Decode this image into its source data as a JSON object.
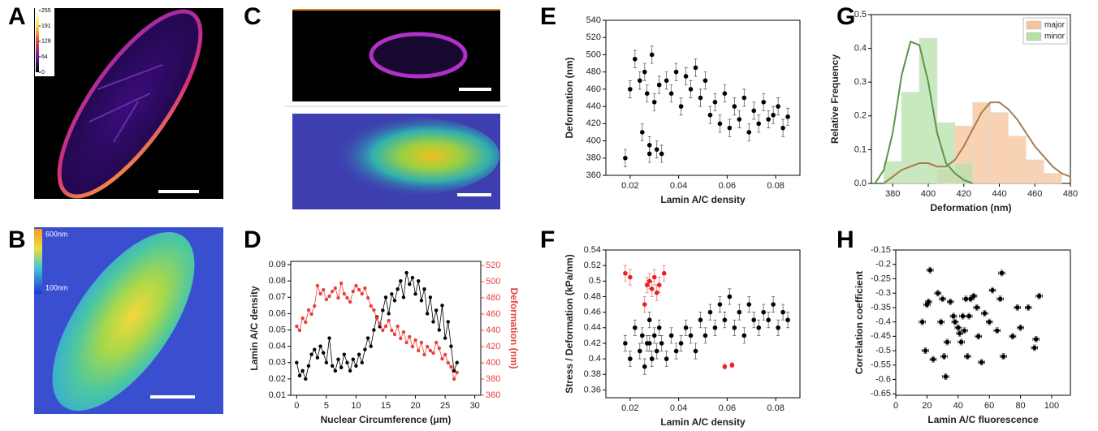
{
  "panel_letters": [
    "A",
    "B",
    "C",
    "D",
    "E",
    "F",
    "G",
    "H"
  ],
  "images": {
    "a_colorbar": {
      "lim": [
        0,
        255
      ],
      "ticks": [
        0,
        64,
        128,
        191,
        255
      ]
    },
    "b_scale": [
      "600nm",
      "100nm"
    ]
  },
  "chart_data": [
    {
      "type": "line",
      "xlabel": "Nuclear Circumference (μm)",
      "ylabel": "Lamin A/C density",
      "y2label": "Deformation (nm)",
      "xlim": [
        -1,
        31
      ],
      "xticks": [
        0,
        5,
        10,
        15,
        20,
        25,
        30
      ],
      "ylim": [
        0.01,
        0.092
      ],
      "yticks": [
        0.01,
        0.02,
        0.03,
        0.04,
        0.05,
        0.06,
        0.07,
        0.08,
        0.09
      ],
      "y2lim": [
        360,
        525
      ],
      "y2ticks": [
        360,
        380,
        400,
        420,
        440,
        460,
        480,
        500,
        520
      ],
      "x": [
        0,
        0.5,
        1,
        1.5,
        2,
        2.5,
        3,
        3.5,
        4,
        4.5,
        5,
        5.5,
        6,
        6.5,
        7,
        7.5,
        8,
        8.5,
        9,
        9.5,
        10,
        10.5,
        11,
        11.5,
        12,
        12.5,
        13,
        13.5,
        14,
        14.5,
        15,
        15.5,
        16,
        16.5,
        17,
        17.5,
        18,
        18.5,
        19,
        19.5,
        20,
        20.5,
        21,
        21.5,
        22,
        22.5,
        23,
        23.5,
        24,
        24.5,
        25,
        25.5,
        26,
        26.5,
        27
      ],
      "series": [
        {
          "color": "#000000",
          "values": [
            0.03,
            0.022,
            0.025,
            0.02,
            0.028,
            0.035,
            0.038,
            0.033,
            0.04,
            0.036,
            0.03,
            0.045,
            0.028,
            0.025,
            0.032,
            0.027,
            0.035,
            0.03,
            0.025,
            0.032,
            0.028,
            0.035,
            0.03,
            0.038,
            0.045,
            0.04,
            0.05,
            0.058,
            0.052,
            0.062,
            0.07,
            0.06,
            0.072,
            0.068,
            0.075,
            0.08,
            0.07,
            0.085,
            0.078,
            0.082,
            0.072,
            0.08,
            0.068,
            0.075,
            0.06,
            0.07,
            0.055,
            0.062,
            0.05,
            0.065,
            0.045,
            0.055,
            0.04,
            0.025,
            0.03
          ]
        },
        {
          "color": "#e8413c",
          "axis": "y2",
          "values": [
            445,
            440,
            455,
            450,
            465,
            460,
            470,
            495,
            485,
            490,
            478,
            482,
            488,
            492,
            480,
            498,
            485,
            480,
            475,
            488,
            495,
            490,
            485,
            492,
            480,
            470,
            465,
            455,
            448,
            440,
            445,
            452,
            440,
            435,
            445,
            430,
            438,
            425,
            432,
            420,
            428,
            415,
            425,
            410,
            420,
            415,
            412,
            425,
            418,
            405,
            410,
            400,
            395,
            380,
            388
          ]
        }
      ]
    },
    {
      "type": "scatter",
      "xlabel": "Lamin A/C density",
      "ylabel": "Deformation (nm)",
      "xlim": [
        0.01,
        0.09
      ],
      "xticks": [
        0.02,
        0.04,
        0.06,
        0.08
      ],
      "ylim": [
        360,
        540
      ],
      "yticks": [
        360,
        380,
        400,
        420,
        440,
        460,
        480,
        500,
        520,
        540
      ],
      "series": [
        {
          "color": "#000000",
          "x": [
            0.018,
            0.02,
            0.022,
            0.024,
            0.025,
            0.026,
            0.027,
            0.028,
            0.029,
            0.03,
            0.031,
            0.032,
            0.033,
            0.035,
            0.037,
            0.039,
            0.041,
            0.043,
            0.045,
            0.047,
            0.049,
            0.051,
            0.053,
            0.055,
            0.057,
            0.059,
            0.061,
            0.063,
            0.065,
            0.067,
            0.069,
            0.071,
            0.073,
            0.075,
            0.077,
            0.079,
            0.081,
            0.083,
            0.085,
            0.028
          ],
          "values": [
            380,
            460,
            495,
            470,
            410,
            480,
            455,
            395,
            500,
            445,
            390,
            465,
            385,
            470,
            455,
            480,
            440,
            475,
            460,
            485,
            450,
            470,
            430,
            445,
            420,
            455,
            415,
            440,
            425,
            450,
            410,
            435,
            420,
            445,
            425,
            430,
            440,
            415,
            428,
            385
          ],
          "errors": [
            10,
            10,
            10,
            10,
            10,
            10,
            10,
            10,
            10,
            10,
            10,
            10,
            10,
            10,
            10,
            10,
            10,
            10,
            10,
            10,
            10,
            10,
            10,
            10,
            10,
            10,
            10,
            10,
            10,
            10,
            10,
            10,
            10,
            10,
            10,
            10,
            10,
            10,
            10,
            10
          ]
        }
      ]
    },
    {
      "type": "scatter",
      "xlabel": "Lamin A/C density",
      "ylabel": "Stress / Deformation (kPa/nm)",
      "xlim": [
        0.01,
        0.09
      ],
      "xticks": [
        0.02,
        0.04,
        0.06,
        0.08
      ],
      "ylim": [
        0.35,
        0.54
      ],
      "yticks": [
        0.36,
        0.38,
        0.4,
        0.42,
        0.44,
        0.46,
        0.48,
        0.5,
        0.52,
        0.54
      ],
      "series": [
        {
          "color": "#000000",
          "x": [
            0.018,
            0.02,
            0.022,
            0.024,
            0.025,
            0.026,
            0.027,
            0.028,
            0.029,
            0.03,
            0.031,
            0.032,
            0.033,
            0.035,
            0.037,
            0.039,
            0.041,
            0.043,
            0.045,
            0.047,
            0.049,
            0.051,
            0.053,
            0.055,
            0.057,
            0.059,
            0.061,
            0.063,
            0.065,
            0.067,
            0.069,
            0.071,
            0.073,
            0.075,
            0.077,
            0.079,
            0.081,
            0.083,
            0.085,
            0.028
          ],
          "values": [
            0.42,
            0.4,
            0.44,
            0.41,
            0.43,
            0.39,
            0.42,
            0.45,
            0.4,
            0.43,
            0.41,
            0.44,
            0.42,
            0.4,
            0.43,
            0.41,
            0.42,
            0.44,
            0.43,
            0.41,
            0.45,
            0.43,
            0.46,
            0.44,
            0.47,
            0.45,
            0.48,
            0.44,
            0.46,
            0.43,
            0.47,
            0.45,
            0.44,
            0.46,
            0.45,
            0.47,
            0.44,
            0.46,
            0.45,
            0.42
          ],
          "errors": [
            0.01,
            0.01,
            0.01,
            0.01,
            0.01,
            0.01,
            0.01,
            0.01,
            0.01,
            0.01,
            0.01,
            0.01,
            0.01,
            0.01,
            0.01,
            0.01,
            0.01,
            0.01,
            0.01,
            0.01,
            0.01,
            0.01,
            0.01,
            0.01,
            0.01,
            0.01,
            0.01,
            0.01,
            0.01,
            0.01,
            0.01,
            0.01,
            0.01,
            0.01,
            0.01,
            0.01,
            0.01,
            0.01,
            0.01,
            0.01
          ]
        },
        {
          "color": "#e8211c",
          "x": [
            0.018,
            0.02,
            0.026,
            0.027,
            0.028,
            0.029,
            0.03,
            0.031,
            0.032,
            0.034,
            0.059,
            0.062
          ],
          "values": [
            0.51,
            0.505,
            0.47,
            0.495,
            0.5,
            0.49,
            0.505,
            0.485,
            0.495,
            0.51,
            0.39,
            0.392
          ],
          "errors": [
            0.01,
            0.01,
            0.01,
            0.01,
            0.01,
            0.01,
            0.01,
            0.01,
            0.01,
            0.01,
            0.003,
            0.003
          ]
        }
      ]
    },
    {
      "type": "histogram",
      "xlabel": "Deformation (nm)",
      "ylabel": "Relative Frequency",
      "xlim": [
        368,
        480
      ],
      "xticks": [
        380,
        400,
        420,
        440,
        460,
        480
      ],
      "ylim": [
        0,
        0.5
      ],
      "yticks": [
        {
          "value": 0,
          "label": "0.0"
        },
        0.1,
        0.2,
        0.3,
        0.4,
        0.5
      ],
      "legend": "upper right",
      "bins": [
        375,
        385,
        395,
        405,
        415,
        425,
        435,
        445,
        455,
        465,
        475
      ],
      "series": [
        {
          "name": "major",
          "color": "#f7c39a",
          "values": [
            0,
            0,
            0,
            0.04,
            0.17,
            0.24,
            0.21,
            0.14,
            0.07,
            0.03
          ]
        },
        {
          "name": "minor",
          "color": "#b5e0a8",
          "values": [
            0.065,
            0.27,
            0.43,
            0.18,
            0.06,
            0,
            0,
            0,
            0,
            0
          ]
        }
      ],
      "curves": [
        {
          "color": "#a67c52",
          "x": [
            375,
            380,
            385,
            390,
            395,
            400,
            405,
            410,
            415,
            420,
            425,
            430,
            435,
            440,
            445,
            450,
            455,
            460,
            465,
            470,
            475,
            480
          ],
          "values": [
            0.0,
            0.02,
            0.04,
            0.05,
            0.06,
            0.06,
            0.05,
            0.05,
            0.07,
            0.11,
            0.16,
            0.21,
            0.24,
            0.24,
            0.22,
            0.19,
            0.15,
            0.11,
            0.08,
            0.05,
            0.03,
            0.02
          ]
        },
        {
          "color": "#5b9447",
          "x": [
            370,
            375,
            380,
            385,
            390,
            395,
            400,
            405,
            410,
            415,
            420,
            425
          ],
          "values": [
            0.0,
            0.04,
            0.15,
            0.32,
            0.42,
            0.41,
            0.3,
            0.15,
            0.06,
            0.03,
            0.01,
            0.0
          ]
        }
      ]
    },
    {
      "type": "scatter",
      "xlabel": "Lamin A/C fluorescence",
      "ylabel": "Correlation coefficient",
      "xlim": [
        0,
        112
      ],
      "xticks": [
        0,
        20,
        40,
        60,
        80,
        100
      ],
      "ylim": [
        -0.655,
        -0.15
      ],
      "yticks": [
        -0.65,
        -0.6,
        -0.55,
        -0.5,
        -0.45,
        -0.4,
        -0.35,
        -0.3,
        -0.25,
        -0.2,
        -0.15
      ],
      "series": [
        {
          "color": "#000000",
          "x": [
            17,
            19,
            20,
            21,
            22,
            24,
            27,
            29,
            30,
            31,
            32,
            33,
            35,
            37,
            38,
            40,
            41,
            42,
            43,
            44,
            45,
            46,
            47,
            48,
            50,
            52,
            53,
            55,
            57,
            60,
            62,
            65,
            67,
            68,
            69,
            75,
            78,
            80,
            85,
            89,
            90,
            92
          ],
          "values": [
            -0.4,
            -0.5,
            -0.34,
            -0.33,
            -0.22,
            -0.53,
            -0.3,
            -0.4,
            -0.32,
            -0.52,
            -0.59,
            -0.47,
            -0.33,
            -0.38,
            -0.4,
            -0.42,
            -0.44,
            -0.47,
            -0.38,
            -0.43,
            -0.32,
            -0.52,
            -0.38,
            -0.32,
            -0.31,
            -0.35,
            -0.45,
            -0.54,
            -0.37,
            -0.4,
            -0.29,
            -0.43,
            -0.32,
            -0.23,
            -0.52,
            -0.45,
            -0.35,
            -0.42,
            -0.35,
            -0.49,
            -0.46,
            -0.31
          ],
          "errors": [
            0.01,
            0.01,
            0.01,
            0.01,
            0.01,
            0.01,
            0.01,
            0.01,
            0.01,
            0.01,
            0.01,
            0.01,
            0.01,
            0.01,
            0.01,
            0.01,
            0.01,
            0.01,
            0.01,
            0.01,
            0.01,
            0.01,
            0.01,
            0.01,
            0.01,
            0.01,
            0.01,
            0.01,
            0.01,
            0.01,
            0.01,
            0.01,
            0.01,
            0.01,
            0.01,
            0.01,
            0.01,
            0.01,
            0.01,
            0.01,
            0.01,
            0.01
          ],
          "xerrors": [
            2,
            2,
            2,
            2,
            2,
            2,
            2,
            2,
            2,
            2,
            2,
            2,
            2,
            2,
            2,
            2,
            2,
            2,
            2,
            2,
            2,
            2,
            2,
            2,
            2,
            2,
            2,
            2,
            2,
            2,
            2,
            2,
            2,
            2,
            2,
            2,
            2,
            2,
            2,
            2,
            2,
            2
          ]
        }
      ]
    }
  ]
}
